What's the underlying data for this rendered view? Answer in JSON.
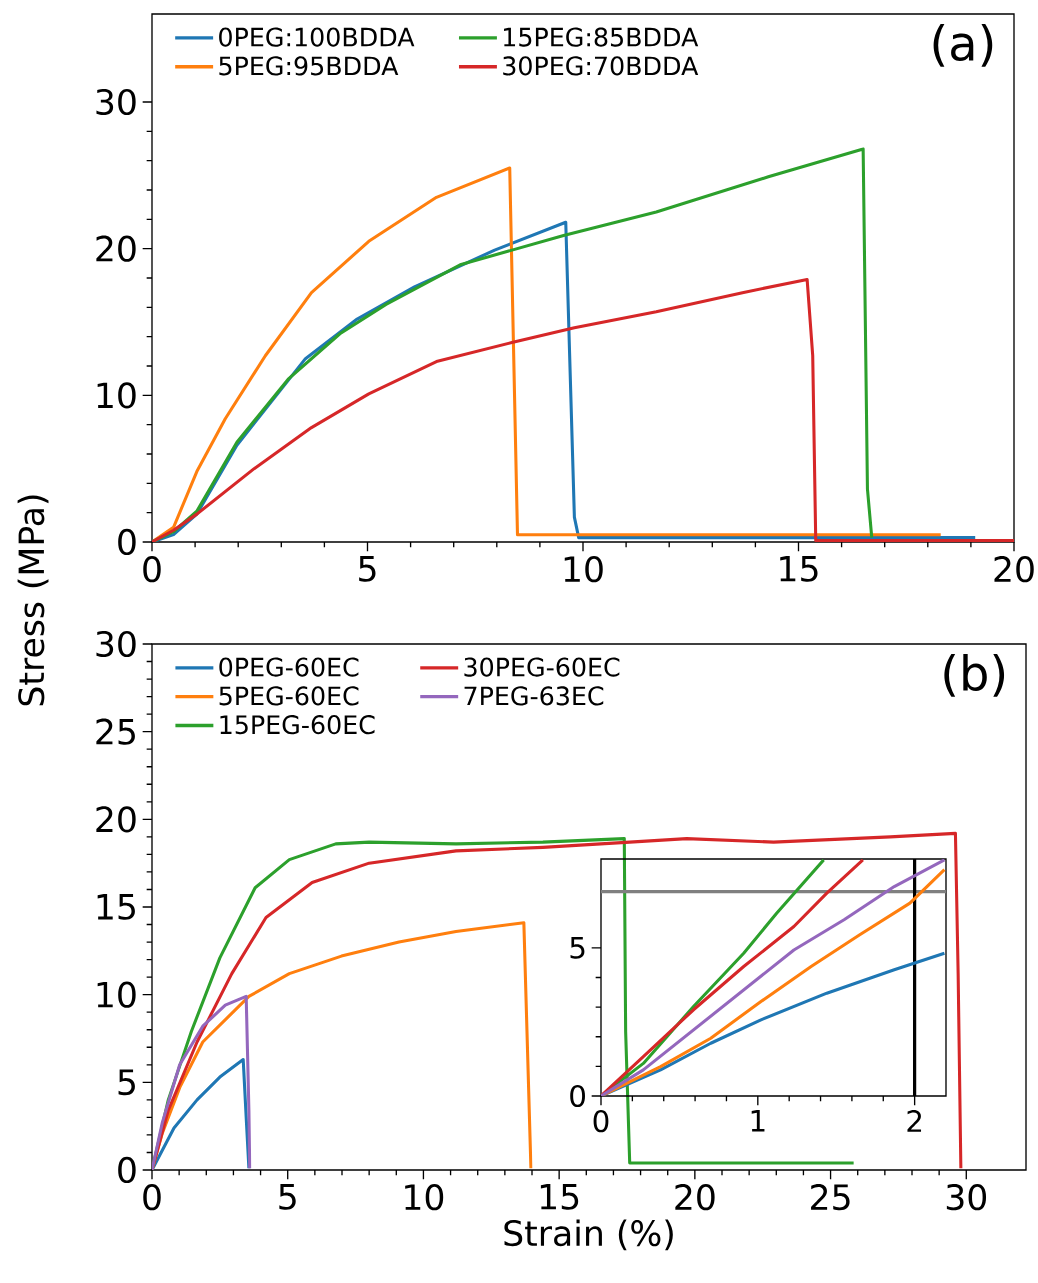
{
  "chart_data": [
    {
      "type": "line",
      "ylabel": "Stress (MPa)",
      "annotations": [
        "(a)"
      ],
      "xlim": [
        0,
        20
      ],
      "ylim": [
        0,
        36
      ],
      "xticks": [
        0,
        5,
        10,
        15,
        20
      ],
      "yticks": [
        0,
        10,
        20,
        30
      ],
      "legend": "top left",
      "series": [
        {
          "name": "0PEG:100BDDA",
          "color": "#1f77b4",
          "x": [
            0,
            0.5,
            1.04,
            1.97,
            3.56,
            4.76,
            6.09,
            7.95,
            9.6,
            9.8,
            9.9,
            19.1
          ],
          "values": [
            0,
            0.5,
            1.9,
            6.6,
            12.5,
            15.2,
            17.4,
            19.9,
            21.8,
            1.7,
            0.3,
            0.3
          ]
        },
        {
          "name": "5PEG:95BDDA",
          "color": "#ff7f0e",
          "x": [
            0,
            0.5,
            1.04,
            1.7,
            2.63,
            3.7,
            5.03,
            6.6,
            8.3,
            8.48,
            18.3
          ],
          "values": [
            0,
            1.0,
            4.8,
            8.4,
            12.7,
            17.0,
            20.5,
            23.5,
            25.5,
            0.5,
            0.5
          ]
        },
        {
          "name": "15PEG:85BDDA",
          "color": "#2ca02c",
          "x": [
            0,
            0.5,
            1.04,
            1.97,
            3.16,
            4.36,
            5.43,
            7.15,
            9.55,
            11.7,
            14.3,
            16.5,
            16.6,
            16.7
          ],
          "values": [
            0,
            0.7,
            2.1,
            6.8,
            11.1,
            14.2,
            16.2,
            18.9,
            20.9,
            22.5,
            24.9,
            26.8,
            3.6,
            0.3
          ]
        },
        {
          "name": "30PEG:70BDDA",
          "color": "#d62728",
          "x": [
            0,
            0.5,
            1.04,
            2.37,
            3.7,
            5.03,
            6.6,
            8.35,
            9.8,
            11.7,
            13.7,
            15.2,
            15.33,
            15.4,
            20
          ],
          "values": [
            0,
            0.8,
            1.9,
            5.0,
            7.8,
            10.1,
            12.3,
            13.6,
            14.6,
            15.7,
            17.0,
            17.9,
            12.7,
            0.1,
            0.1
          ]
        }
      ]
    },
    {
      "type": "line",
      "xlabel": "Strain (%)",
      "annotations": [
        "(b)"
      ],
      "xlim": [
        0,
        32.2
      ],
      "ylim": [
        0,
        30
      ],
      "xticks": [
        0,
        5,
        10,
        15,
        20,
        25,
        30
      ],
      "yticks": [
        0,
        5,
        10,
        15,
        20,
        25,
        30
      ],
      "legend": "top left",
      "series": [
        {
          "name": "0PEG-60EC",
          "color": "#1f77b4",
          "x": [
            0,
            0.81,
            1.66,
            2.5,
            3.36,
            3.47,
            3.57
          ],
          "values": [
            0,
            2.4,
            4.0,
            5.3,
            6.3,
            3.0,
            0.1
          ]
        },
        {
          "name": "5PEG-60EC",
          "color": "#ff7f0e",
          "x": [
            0,
            0.38,
            1.02,
            1.87,
            3.57,
            5.06,
            6.98,
            9.1,
            11.2,
            13.7,
            13.96
          ],
          "values": [
            0,
            2.1,
            4.7,
            7.3,
            9.9,
            11.2,
            12.2,
            13.0,
            13.6,
            14.1,
            0.1
          ]
        },
        {
          "name": "15PEG-60EC",
          "color": "#2ca02c",
          "x": [
            0,
            0.6,
            1.45,
            2.5,
            3.8,
            5.06,
            6.77,
            8.0,
            11.2,
            14.4,
            17.4,
            17.45,
            17.6,
            25.85
          ],
          "values": [
            0,
            4.0,
            7.9,
            12.1,
            16.1,
            17.7,
            18.6,
            18.7,
            18.6,
            18.7,
            18.9,
            7.9,
            0.4,
            0.4
          ]
        },
        {
          "name": "30PEG-60EC",
          "color": "#d62728",
          "x": [
            0,
            0.6,
            1.66,
            2.94,
            4.2,
            5.9,
            8.0,
            11.2,
            14.4,
            17.6,
            19.7,
            22.9,
            27.2,
            29.6,
            29.7,
            29.8
          ],
          "values": [
            0,
            3.4,
            7.3,
            11.2,
            14.4,
            16.4,
            17.5,
            18.2,
            18.4,
            18.7,
            18.9,
            18.7,
            19.0,
            19.2,
            11.2,
            0.1
          ]
        },
        {
          "name": "7PEG-63EC",
          "color": "#9467bd",
          "x": [
            0,
            0.38,
            1.02,
            1.87,
            2.7,
            3.47,
            3.57,
            3.6
          ],
          "values": [
            0,
            2.7,
            6.0,
            8.2,
            9.4,
            9.9,
            3.4,
            0.1
          ]
        }
      ]
    },
    {
      "type": "line",
      "xlim": [
        0,
        2.2
      ],
      "ylim": [
        0,
        8
      ],
      "xticks": [
        0,
        1,
        2
      ],
      "yticks": [
        0,
        5
      ],
      "ref_lines": [
        {
          "axis": "y",
          "value": 6.9,
          "color": "#808080"
        },
        {
          "axis": "x",
          "value": 2,
          "color": "#000000"
        }
      ],
      "series": [
        {
          "color": "#1f77b4",
          "x": [
            0,
            0.38,
            0.7,
            1.02,
            1.44,
            1.87,
            2.19
          ],
          "values": [
            0,
            0.88,
            1.78,
            2.57,
            3.47,
            4.26,
            4.82
          ]
        },
        {
          "color": "#ff7f0e",
          "x": [
            0,
            0.38,
            0.7,
            1.02,
            1.34,
            1.65,
            1.97,
            2.19
          ],
          "values": [
            0,
            0.99,
            1.95,
            3.19,
            4.37,
            5.44,
            6.51,
            7.64
          ]
        },
        {
          "color": "#2ca02c",
          "x": [
            0,
            0.27,
            0.59,
            0.91,
            1.12,
            1.42
          ],
          "values": [
            0,
            1.1,
            3.02,
            4.82,
            6.17,
            7.97
          ]
        },
        {
          "color": "#d62728",
          "x": [
            0,
            0.27,
            0.59,
            0.91,
            1.23,
            1.44,
            1.67
          ],
          "values": [
            0,
            1.33,
            2.91,
            4.37,
            5.72,
            6.85,
            7.97
          ]
        },
        {
          "color": "#9467bd",
          "x": [
            0,
            0.27,
            0.59,
            0.91,
            1.23,
            1.55,
            1.87,
            2.19
          ],
          "values": [
            0,
            0.88,
            2.23,
            3.58,
            4.93,
            5.95,
            7.07,
            7.97
          ]
        }
      ]
    }
  ]
}
